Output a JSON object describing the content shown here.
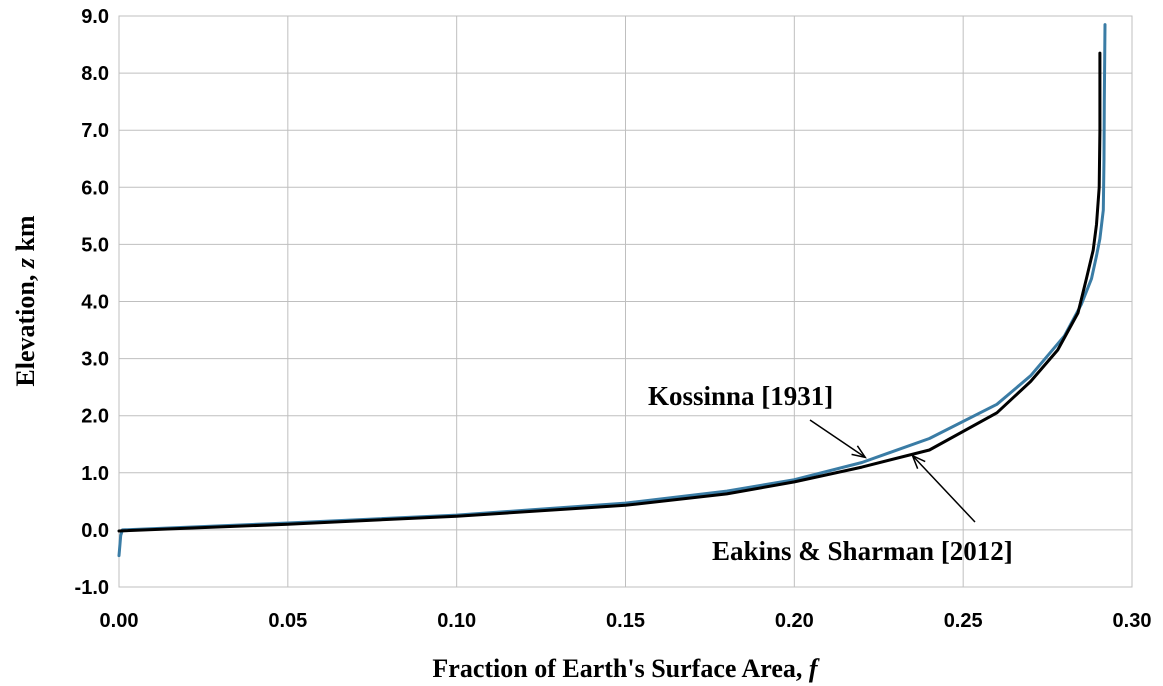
{
  "chart_data": {
    "type": "line",
    "xlabel": {
      "text": "Fraction of Earth's Surface Area, ",
      "var": "f"
    },
    "ylabel": {
      "text": "Elevation, ",
      "var": "z",
      "unit": " km"
    },
    "xlim": [
      0.0,
      0.3
    ],
    "ylim": [
      -1.0,
      9.0
    ],
    "x_ticks": [
      "0.00",
      "0.05",
      "0.10",
      "0.15",
      "0.20",
      "0.25",
      "0.30"
    ],
    "y_ticks": [
      "-1.0",
      "0.0",
      "1.0",
      "2.0",
      "3.0",
      "4.0",
      "5.0",
      "6.0",
      "7.0",
      "8.0",
      "9.0"
    ],
    "grid": true,
    "legend": "none",
    "series": [
      {
        "name": "Kossinna [1931]",
        "color": "#3a7ca5",
        "points": [
          [
            0.0,
            -0.45
          ],
          [
            0.0005,
            -0.1
          ],
          [
            0.001,
            0.0
          ],
          [
            0.05,
            0.12
          ],
          [
            0.1,
            0.26
          ],
          [
            0.15,
            0.47
          ],
          [
            0.18,
            0.68
          ],
          [
            0.2,
            0.88
          ],
          [
            0.22,
            1.18
          ],
          [
            0.24,
            1.6
          ],
          [
            0.26,
            2.2
          ],
          [
            0.27,
            2.7
          ],
          [
            0.28,
            3.4
          ],
          [
            0.285,
            3.95
          ],
          [
            0.288,
            4.4
          ],
          [
            0.2895,
            4.8
          ],
          [
            0.2905,
            5.1
          ],
          [
            0.2915,
            5.6
          ],
          [
            0.2917,
            6.5
          ],
          [
            0.2918,
            7.5
          ],
          [
            0.292,
            8.85
          ]
        ]
      },
      {
        "name": "Eakins & Sharman [2012]",
        "color": "#000000",
        "points": [
          [
            0.0,
            -0.02
          ],
          [
            0.05,
            0.1
          ],
          [
            0.1,
            0.24
          ],
          [
            0.15,
            0.43
          ],
          [
            0.18,
            0.63
          ],
          [
            0.2,
            0.84
          ],
          [
            0.22,
            1.1
          ],
          [
            0.24,
            1.4
          ],
          [
            0.26,
            2.05
          ],
          [
            0.27,
            2.6
          ],
          [
            0.278,
            3.15
          ],
          [
            0.284,
            3.8
          ],
          [
            0.2865,
            4.4
          ],
          [
            0.2885,
            4.9
          ],
          [
            0.2895,
            5.35
          ],
          [
            0.2903,
            6.0
          ],
          [
            0.2905,
            7.0
          ],
          [
            0.2905,
            8.35
          ]
        ]
      }
    ],
    "annotations": [
      {
        "text": "Kossinna [1931]",
        "arrow_to": [
          0.221,
          1.27
        ]
      },
      {
        "text": "Eakins & Sharman [2012]",
        "arrow_to": [
          0.235,
          1.3
        ]
      }
    ]
  }
}
